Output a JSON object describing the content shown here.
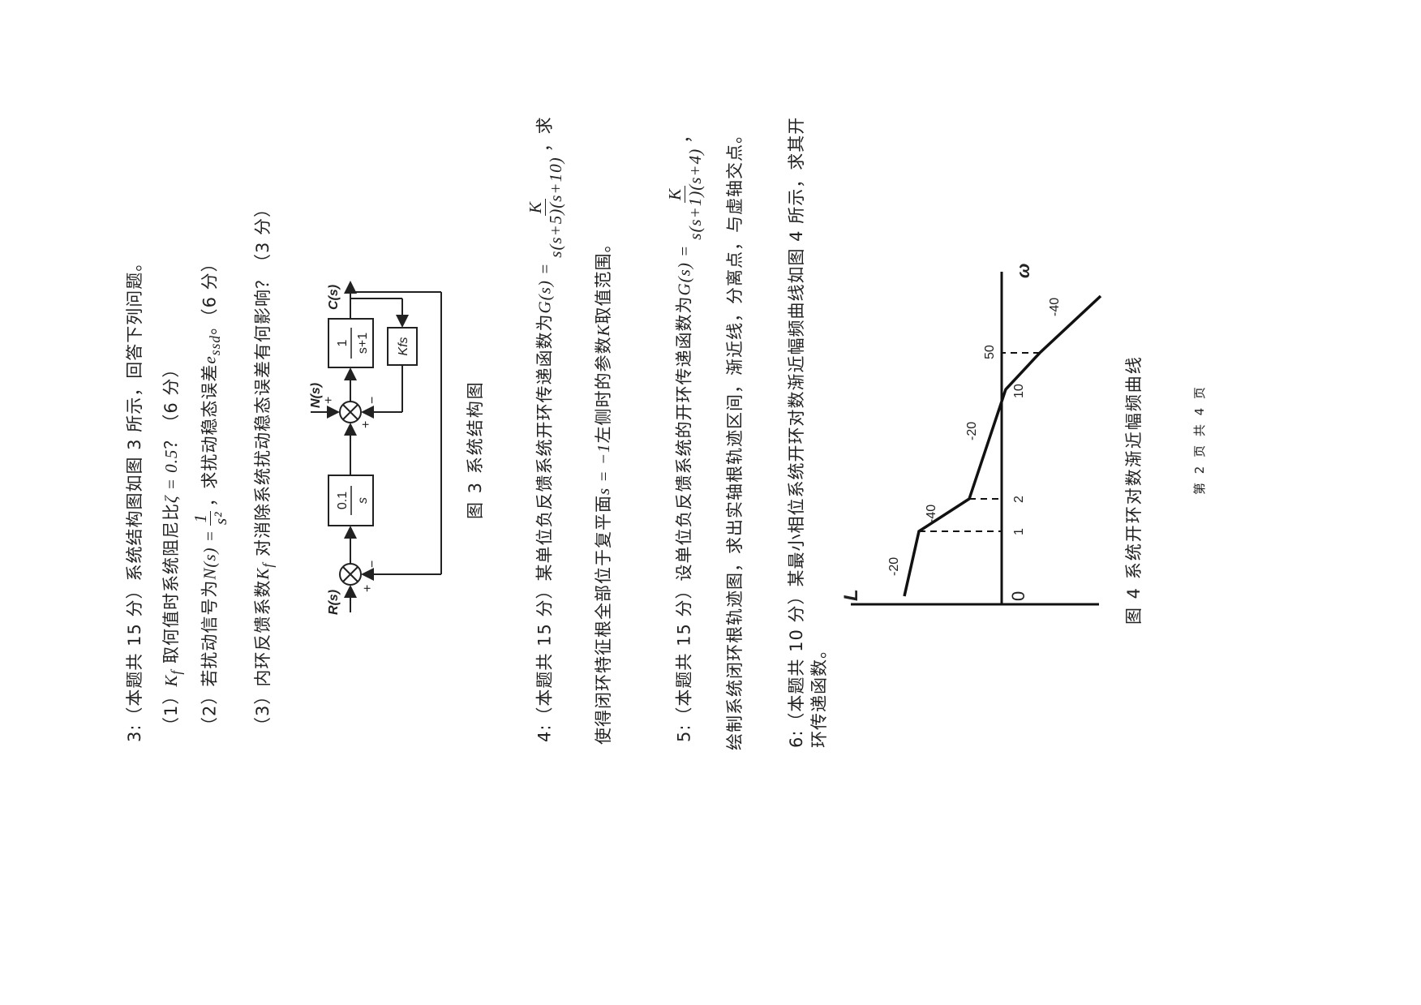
{
  "q3": {
    "intro": "3:（本题共 15 分）系统结构图如图 3 所示，回答下列问题。",
    "p1_a": "（1）",
    "p1_b": "K",
    "p1_sub": "f",
    "p1_c": " 取何值时系统阻尼比",
    "p1_d": "ζ = 0.5",
    "p1_e": "？（6 分）",
    "p2_a": "（2）若扰动信号为",
    "p2_b": "N(s) =",
    "p2_num": "1",
    "p2_den": "s²",
    "p2_c": "，求扰动稳态误差",
    "p2_d": "e",
    "p2_sub": "ssd",
    "p2_e": "。（6 分）",
    "p3_a": "（3）内环反馈系数",
    "p3_b": "K",
    "p3_sub": "f",
    "p3_c": " 对消除系统扰动稳态误差有何影响？（3 分）"
  },
  "fig3": {
    "caption": "图 3  系统结构图",
    "r": "R(s)",
    "n": "N(s)",
    "c": "C(s)",
    "g1_num": "0.1",
    "g1_den": "s",
    "g2_num": "1",
    "g2_den": "s+1",
    "kf": "Kfs",
    "plus": "+",
    "minus": "−"
  },
  "q4": {
    "line1_a": "4:（本题共 15 分）某单位负反馈系统开环传递函数为",
    "line1_b": "G(s) =",
    "num": "K",
    "den": "s(s+5)(s+10)",
    "line1_c": "，求",
    "line2_a": "使得闭环特征根全部位于复平面",
    "line2_b": "s = −1",
    "line2_c": "左侧时的参数",
    "line2_d": "K",
    "line2_e": "取值范围。"
  },
  "q5": {
    "line1_a": "5:（本题共 15 分）设单位负反馈系统的开环传递函数为",
    "line1_b": "G(s) =",
    "num": "K",
    "den": "s(s+1)(s+4)",
    "line1_c": "，",
    "line2": "绘制系统闭环根轨迹图，求出实轴根轨迹区间，渐近线，分离点，与虚轴交点。"
  },
  "q6": {
    "line1": "6:（本题共 10 分）某最小相位系统开环对数渐近幅频曲线如图 4 所示，求其开",
    "line2": "环传递函数。"
  },
  "fig4": {
    "caption": "图 4  系统开环对数渐近幅频曲线",
    "axis_l": "L",
    "axis_w": "ω",
    "origin": "0",
    "breakpoints": [
      "1",
      "2",
      "10",
      "50"
    ],
    "slopes": [
      "-20",
      "-40",
      "-20",
      "-40"
    ]
  },
  "footer": "第 2 页  共 4 页",
  "chart_data": {
    "type": "line",
    "title": "系统开环对数渐近幅频曲线",
    "xlabel": "ω",
    "ylabel": "L",
    "x_scale": "log",
    "breakpoints": [
      1,
      2,
      10,
      50
    ],
    "slopes_db_per_decade": [
      -20,
      -40,
      -20,
      -40
    ],
    "x": [
      1,
      2,
      10,
      50
    ],
    "crossover": 10
  }
}
